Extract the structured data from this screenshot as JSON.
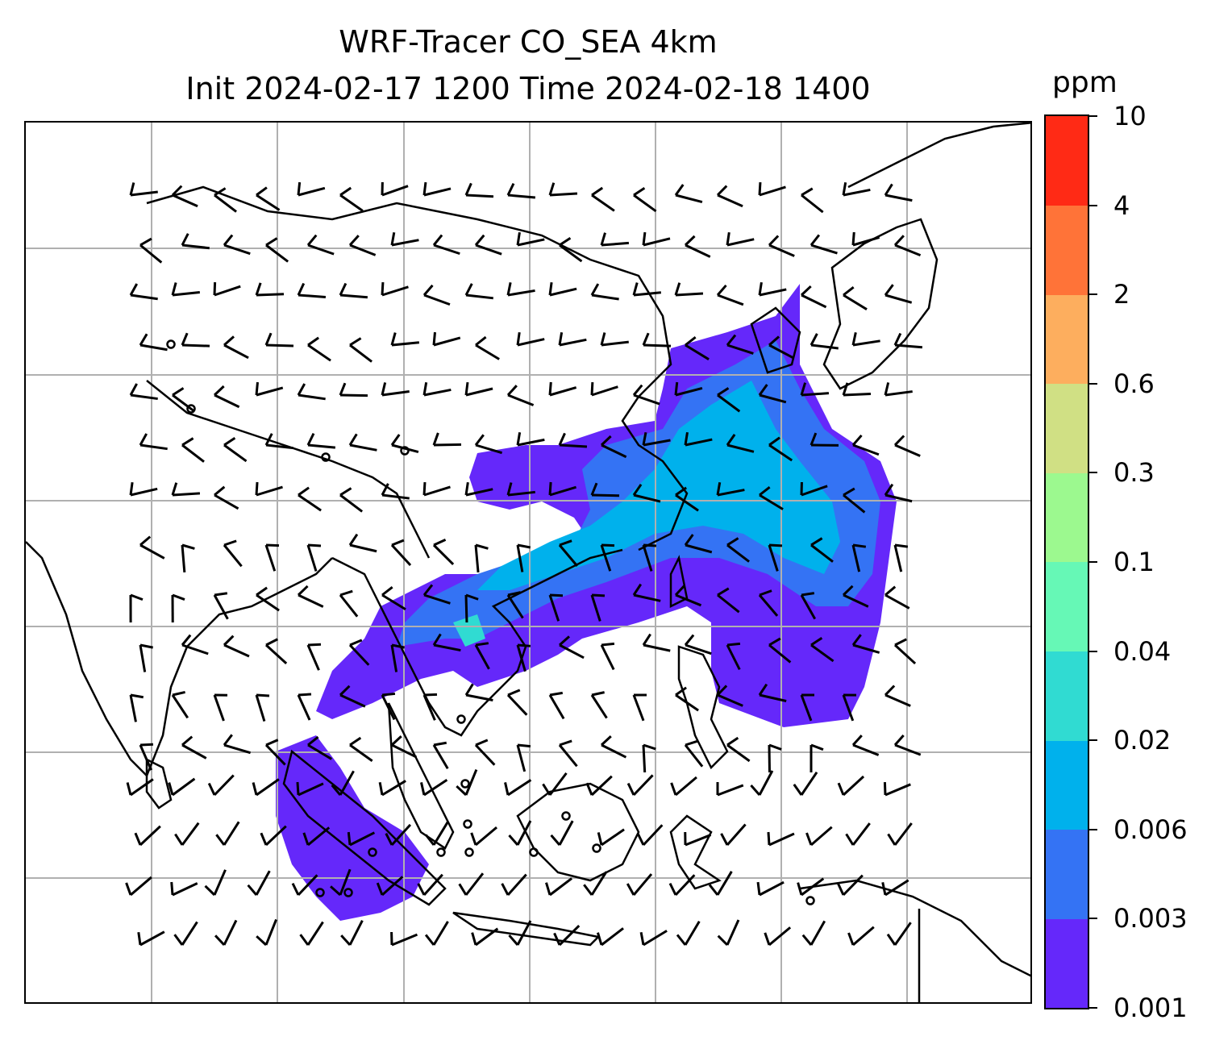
{
  "title": {
    "line1": "WRF-Tracer CO_SEA 4km",
    "line2": "Init 2024-02-17 1200 Time 2024-02-18 1400"
  },
  "colorbar": {
    "unit": "ppm",
    "ticks": [
      "0.001",
      "0.003",
      "0.006",
      "0.02",
      "0.04",
      "0.1",
      "0.3",
      "0.6",
      "2",
      "4",
      "10"
    ],
    "colors": [
      "#6528fa",
      "#3473f4",
      "#00b1ec",
      "#30dbd2",
      "#66f8b6",
      "#9cf98f",
      "#d0e084",
      "#fdae5e",
      "#ff7338",
      "#ff2a15"
    ]
  },
  "map": {
    "grid": "on",
    "tracer_field": "CO_SEA",
    "overlays": [
      "coastlines",
      "wind-barbs",
      "tracer-concentration"
    ]
  }
}
